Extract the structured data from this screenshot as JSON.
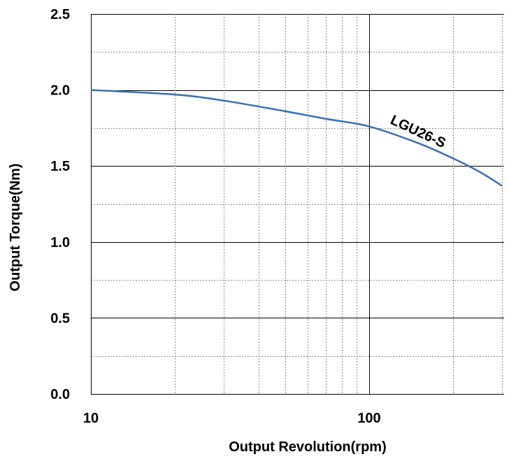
{
  "chart_data": {
    "type": "line",
    "title": "",
    "xlabel": "Output Revolution(rpm)",
    "ylabel": "Output Torque(Nm)",
    "xscale": "log",
    "xlim": [
      10,
      300
    ],
    "ylim": [
      0,
      2.5
    ],
    "x_ticks": [
      10,
      100
    ],
    "x_tick_labels": [
      "10",
      "100"
    ],
    "y_ticks": [
      0,
      0.5,
      1.0,
      1.5,
      2.0,
      2.5
    ],
    "y_tick_labels": [
      "0.0",
      "0.5",
      "1.0",
      "1.5",
      "2.0",
      "2.5"
    ],
    "grid": true,
    "series": [
      {
        "name": "LGU26-S",
        "color": "#3a6fb0",
        "x": [
          10,
          20,
          30,
          50,
          70,
          100,
          150,
          200,
          250,
          300
        ],
        "y": [
          2.0,
          1.97,
          1.93,
          1.86,
          1.81,
          1.76,
          1.65,
          1.55,
          1.46,
          1.37
        ]
      }
    ]
  }
}
